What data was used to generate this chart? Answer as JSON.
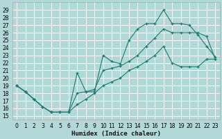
{
  "xlabel": "Humidex (Indice chaleur)",
  "background_color": "#b2d8d8",
  "grid_color": "#ffffff",
  "line_color": "#1a7a6e",
  "xlim": [
    -0.5,
    23.5
  ],
  "ylim": [
    14.5,
    30.0
  ],
  "xticks": [
    0,
    1,
    2,
    3,
    4,
    5,
    6,
    7,
    8,
    9,
    10,
    11,
    12,
    13,
    14,
    15,
    16,
    17,
    18,
    19,
    20,
    21,
    22,
    23
  ],
  "yticks": [
    15,
    16,
    17,
    18,
    19,
    20,
    21,
    22,
    23,
    24,
    25,
    26,
    27,
    28,
    29
  ],
  "x": [
    0,
    1,
    2,
    3,
    4,
    5,
    6,
    7,
    8,
    9,
    10,
    11,
    12,
    13,
    14,
    15,
    16,
    17,
    18,
    19,
    20,
    21,
    22,
    23
  ],
  "y_top": [
    19.0,
    18.2,
    17.2,
    16.2,
    15.5,
    15.5,
    15.5,
    20.7,
    18.2,
    18.2,
    23.0,
    22.2,
    21.9,
    25.0,
    26.5,
    27.2,
    27.2,
    29.0,
    27.2,
    27.2,
    27.0,
    25.7,
    24.2,
    22.8
  ],
  "y_mid": [
    19.0,
    18.2,
    17.2,
    16.2,
    15.5,
    15.5,
    15.5,
    18.0,
    18.2,
    18.5,
    21.0,
    21.3,
    21.6,
    22.2,
    23.0,
    24.2,
    25.3,
    26.5,
    26.0,
    26.0,
    26.0,
    26.0,
    25.5,
    22.5
  ],
  "y_bot": [
    19.0,
    18.2,
    17.2,
    16.2,
    15.5,
    15.5,
    15.5,
    16.5,
    17.2,
    18.0,
    19.0,
    19.5,
    20.0,
    21.0,
    21.5,
    22.2,
    23.0,
    24.2,
    22.0,
    21.5,
    21.5,
    21.5,
    22.5,
    22.5
  ]
}
